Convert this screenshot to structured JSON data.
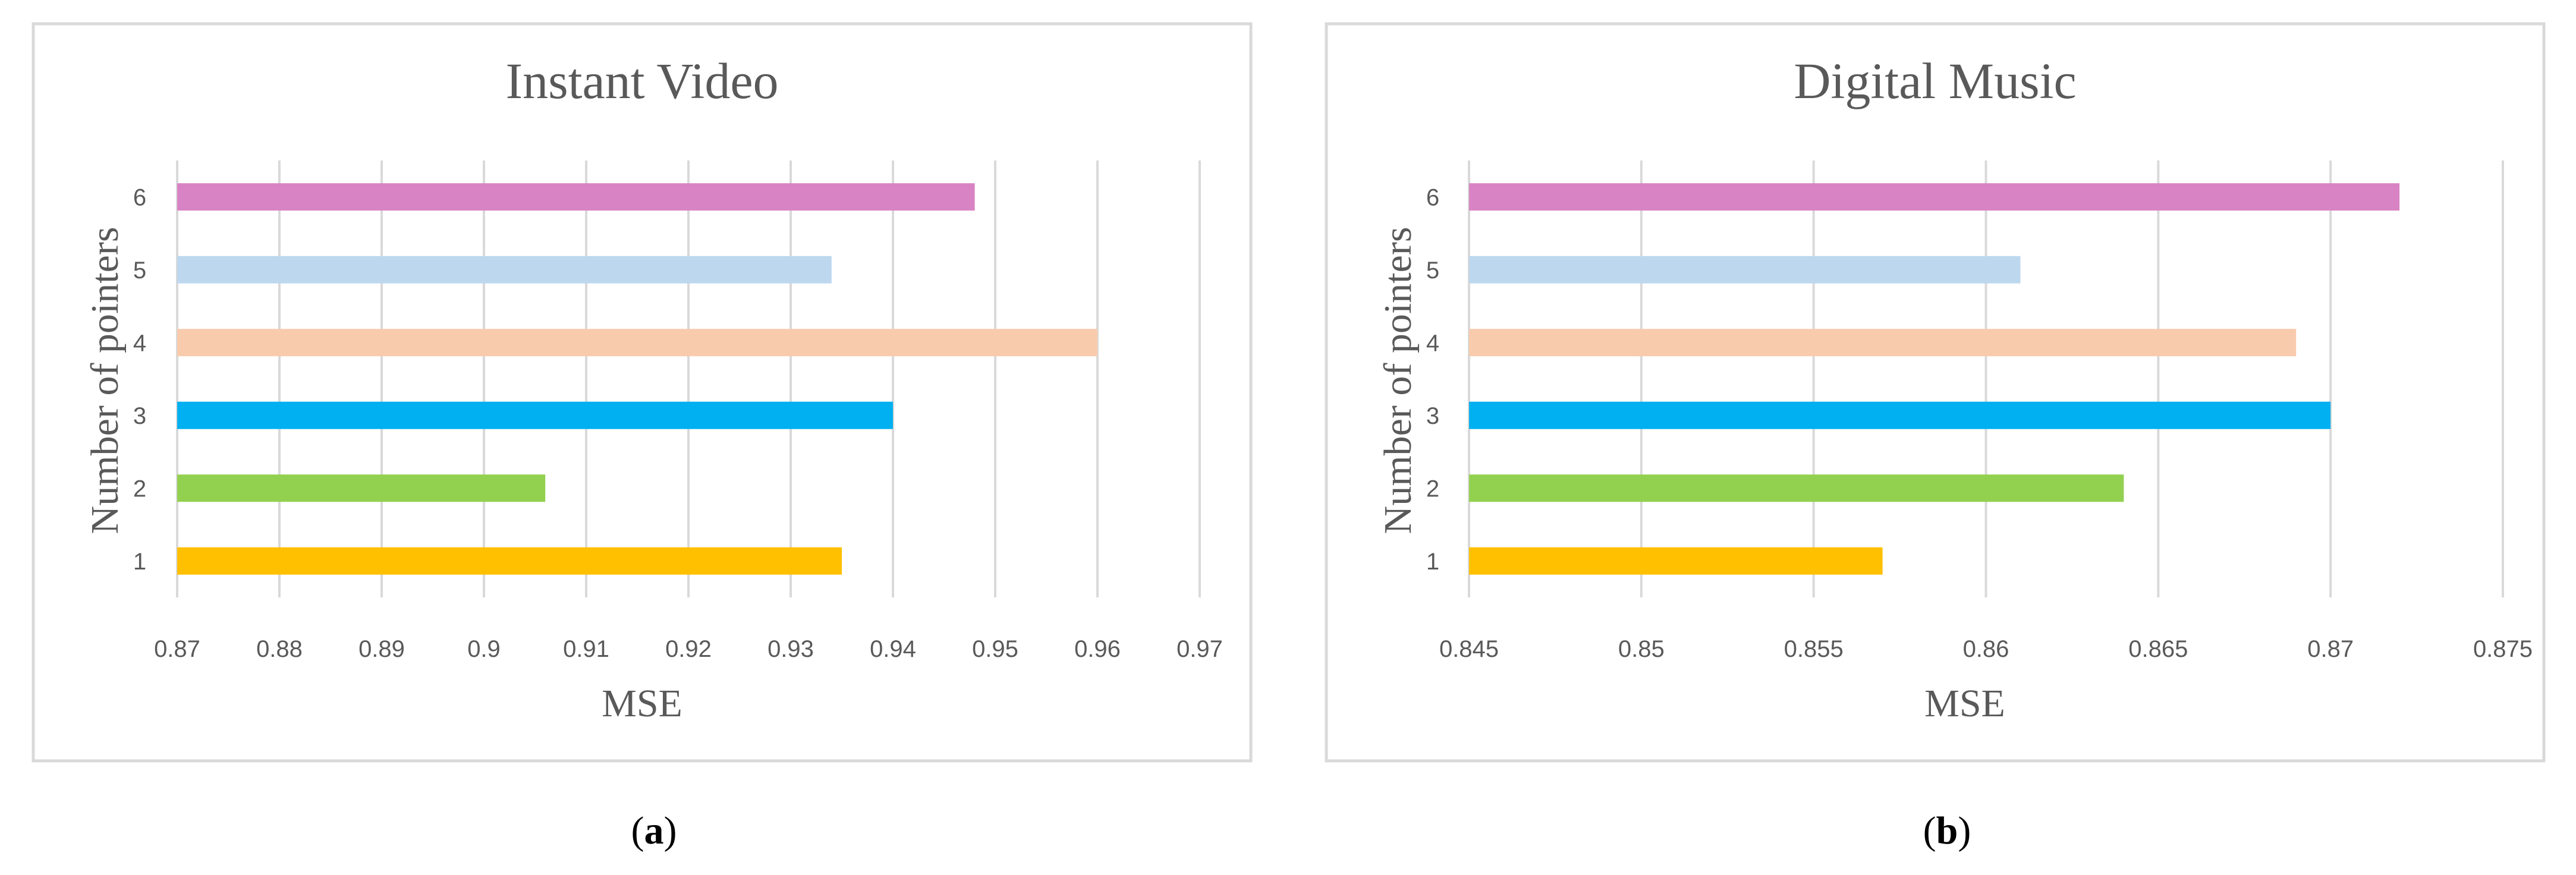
{
  "chart_data": [
    {
      "type": "bar",
      "orientation": "horizontal",
      "title": "Instant Video",
      "xlabel": "MSE",
      "ylabel": "Number of pointers",
      "categories": [
        "1",
        "2",
        "3",
        "4",
        "5",
        "6"
      ],
      "values": [
        0.935,
        0.906,
        0.94,
        0.96,
        0.934,
        0.948
      ],
      "bar_colors": [
        "#FFC000",
        "#92D050",
        "#00B0F0",
        "#F8CBAD",
        "#BDD7EE",
        "#D883C3"
      ],
      "xlim": [
        0.87,
        0.97
      ],
      "xticks": [
        0.87,
        0.88,
        0.89,
        0.9,
        0.91,
        0.92,
        0.93,
        0.94,
        0.95,
        0.96,
        0.97
      ],
      "xtick_labels": [
        "0.87",
        "0.88",
        "0.89",
        "0.9",
        "0.91",
        "0.92",
        "0.93",
        "0.94",
        "0.95",
        "0.96",
        "0.97"
      ],
      "grid": true,
      "legend": "none"
    },
    {
      "type": "bar",
      "orientation": "horizontal",
      "title": "Digital Music",
      "xlabel": "MSE",
      "ylabel": "Number of pointers",
      "categories": [
        "1",
        "2",
        "3",
        "4",
        "5",
        "6"
      ],
      "values": [
        0.857,
        0.864,
        0.87,
        0.869,
        0.861,
        0.872
      ],
      "bar_colors": [
        "#FFC000",
        "#92D050",
        "#00B0F0",
        "#F8CBAD",
        "#BDD7EE",
        "#D883C3"
      ],
      "xlim": [
        0.845,
        0.875
      ],
      "xticks": [
        0.845,
        0.85,
        0.855,
        0.86,
        0.865,
        0.87,
        0.875
      ],
      "xtick_labels": [
        "0.845",
        "0.85",
        "0.855",
        "0.86",
        "0.865",
        "0.87",
        "0.875"
      ],
      "grid": true,
      "legend": "none"
    }
  ],
  "captions": [
    {
      "open": "(",
      "letter": "a",
      "close": ")"
    },
    {
      "open": "(",
      "letter": "b",
      "close": ")"
    }
  ]
}
